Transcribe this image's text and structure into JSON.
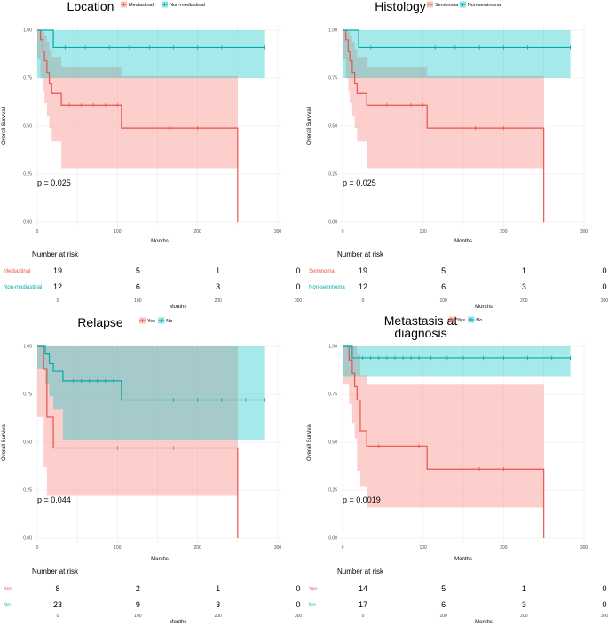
{
  "colors": {
    "red": "#F8766D",
    "teal": "#00BFC4",
    "red_line": "#E8534A",
    "teal_line": "#00A9AE"
  },
  "axis_labels": {
    "xlabel": "Months",
    "ylabel": "Overall Survival"
  },
  "risk_table_title": "Number at risk",
  "chart_data": [
    {
      "type": "line",
      "title_lines": [
        "Location"
      ],
      "legend": [
        "Mediastinal",
        "Non-mediastinal"
      ],
      "p_value": "p = 0.025",
      "xlim": [
        0,
        300
      ],
      "ylim": [
        0,
        1
      ],
      "x_ticks": [
        0,
        100,
        200,
        300
      ],
      "y_ticks": [
        0,
        0.25,
        0.5,
        0.75,
        1
      ],
      "y_tick_labels": [
        "0.00",
        "0.25",
        "0.50",
        "0.75",
        "1.00"
      ],
      "series": [
        {
          "name": "Mediastinal",
          "x": [
            0,
            4,
            7,
            9,
            12,
            15,
            18,
            30,
            105,
            250,
            250
          ],
          "y": [
            1,
            0.95,
            0.89,
            0.84,
            0.78,
            0.72,
            0.67,
            0.61,
            0.49,
            0.49,
            0.0
          ],
          "upper": [
            1,
            1,
            0.99,
            0.97,
            0.94,
            0.9,
            0.86,
            0.81,
            0.76,
            0.76,
            0.76
          ],
          "lower": [
            1,
            0.85,
            0.75,
            0.68,
            0.62,
            0.55,
            0.49,
            0.42,
            0.28,
            0.28,
            0.28
          ],
          "censor_x": [
            40,
            55,
            70,
            85,
            100,
            165,
            200
          ]
        },
        {
          "name": "Non-mediastinal",
          "x": [
            0,
            20,
            283
          ],
          "y": [
            1,
            0.91,
            0.91
          ],
          "upper": [
            1,
            1,
            1
          ],
          "lower": [
            1,
            0.75,
            0.75
          ],
          "censor_x": [
            35,
            60,
            90,
            115,
            140,
            170,
            200,
            230,
            283
          ]
        }
      ],
      "risk_groups": [
        "Mediastinal",
        "Non-mediastinal"
      ],
      "risk_values": [
        [
          19,
          5,
          1,
          0
        ],
        [
          12,
          6,
          3,
          0
        ]
      ]
    },
    {
      "type": "line",
      "title_lines": [
        "Histology"
      ],
      "legend": [
        "Seminoma",
        "Non-seminoma"
      ],
      "p_value": "p = 0.025",
      "xlim": [
        0,
        300
      ],
      "ylim": [
        0,
        1
      ],
      "x_ticks": [
        0,
        100,
        200,
        300
      ],
      "y_ticks": [
        0,
        0.25,
        0.5,
        0.75,
        1
      ],
      "y_tick_labels": [
        "0.00",
        "0.25",
        "0.50",
        "0.75",
        "1.00"
      ],
      "series": [
        {
          "name": "Seminoma",
          "x": [
            0,
            4,
            7,
            9,
            12,
            15,
            18,
            30,
            105,
            250,
            250
          ],
          "y": [
            1,
            0.95,
            0.89,
            0.84,
            0.78,
            0.72,
            0.67,
            0.61,
            0.49,
            0.49,
            0.0
          ],
          "upper": [
            1,
            1,
            0.99,
            0.97,
            0.94,
            0.9,
            0.86,
            0.81,
            0.76,
            0.76,
            0.76
          ],
          "lower": [
            1,
            0.85,
            0.75,
            0.68,
            0.62,
            0.55,
            0.49,
            0.42,
            0.28,
            0.28,
            0.28
          ],
          "censor_x": [
            40,
            55,
            70,
            85,
            100,
            165,
            200
          ]
        },
        {
          "name": "Non-seminoma",
          "x": [
            0,
            20,
            283
          ],
          "y": [
            1,
            0.91,
            0.91
          ],
          "upper": [
            1,
            1,
            1
          ],
          "lower": [
            1,
            0.75,
            0.75
          ],
          "censor_x": [
            35,
            60,
            90,
            115,
            140,
            170,
            200,
            230,
            283
          ]
        }
      ],
      "risk_groups": [
        "Seminoma",
        "Non-seminoma"
      ],
      "risk_values": [
        [
          19,
          5,
          1,
          0
        ],
        [
          12,
          6,
          3,
          0
        ]
      ]
    },
    {
      "type": "line",
      "title_lines": [
        "Relapse"
      ],
      "legend": [
        "Yes",
        "No"
      ],
      "p_value": "p = 0.044",
      "xlim": [
        0,
        300
      ],
      "ylim": [
        0,
        1
      ],
      "x_ticks": [
        0,
        100,
        200,
        300
      ],
      "y_ticks": [
        0,
        0.25,
        0.5,
        0.75,
        1
      ],
      "y_tick_labels": [
        "0.00",
        "0.25",
        "0.50",
        "0.75",
        "1.00"
      ],
      "series": [
        {
          "name": "Yes",
          "x": [
            0,
            8,
            12,
            20,
            250,
            250
          ],
          "y": [
            1,
            0.88,
            0.63,
            0.47,
            0.47,
            0.0
          ],
          "upper": [
            1,
            1,
            1,
            1,
            1,
            1
          ],
          "lower": [
            1,
            0.63,
            0.37,
            0.22,
            0.22,
            0.22
          ],
          "censor_x": [
            100,
            170
          ]
        },
        {
          "name": "No",
          "x": [
            0,
            10,
            15,
            20,
            32,
            105,
            283
          ],
          "y": [
            1,
            0.96,
            0.91,
            0.87,
            0.82,
            0.72,
            0.72
          ],
          "upper": [
            1,
            1,
            1,
            1,
            1,
            1,
            1
          ],
          "lower": [
            1,
            0.88,
            0.8,
            0.74,
            0.67,
            0.51,
            0.51
          ],
          "censor_x": [
            45,
            55,
            65,
            75,
            85,
            95,
            170,
            200,
            230,
            260,
            283
          ]
        }
      ],
      "risk_groups": [
        "Yes",
        "No"
      ],
      "risk_values": [
        [
          8,
          2,
          1,
          0
        ],
        [
          23,
          9,
          3,
          0
        ]
      ]
    },
    {
      "type": "line",
      "title_lines": [
        "Metastasis at",
        "diagnosis"
      ],
      "legend": [
        "Yes",
        "No"
      ],
      "p_value": "p = 0.0019",
      "xlim": [
        0,
        300
      ],
      "ylim": [
        0,
        1
      ],
      "x_ticks": [
        0,
        100,
        200,
        300
      ],
      "y_ticks": [
        0,
        0.25,
        0.5,
        0.75,
        1
      ],
      "y_tick_labels": [
        "0.00",
        "0.25",
        "0.50",
        "0.75",
        "1.00"
      ],
      "series": [
        {
          "name": "Yes",
          "x": [
            0,
            8,
            12,
            15,
            18,
            22,
            30,
            105,
            250,
            250
          ],
          "y": [
            1,
            0.93,
            0.86,
            0.79,
            0.72,
            0.56,
            0.48,
            0.36,
            0.36,
            0.0
          ],
          "upper": [
            1,
            1,
            1,
            1,
            0.96,
            0.85,
            0.8,
            0.8,
            0.8,
            0.8
          ],
          "lower": [
            1,
            0.8,
            0.7,
            0.6,
            0.52,
            0.35,
            0.27,
            0.16,
            0.16,
            0.16
          ],
          "censor_x": [
            45,
            60,
            80,
            95,
            170,
            200
          ]
        },
        {
          "name": "No",
          "x": [
            0,
            12,
            283
          ],
          "y": [
            1,
            0.94,
            0.94
          ],
          "upper": [
            1,
            1,
            1
          ],
          "lower": [
            1,
            0.84,
            0.84
          ],
          "censor_x": [
            25,
            35,
            45,
            55,
            65,
            75,
            85,
            95,
            110,
            130,
            150,
            175,
            200,
            230,
            260,
            283
          ]
        }
      ],
      "risk_groups": [
        "Yes",
        "No"
      ],
      "risk_values": [
        [
          14,
          5,
          1,
          0
        ],
        [
          17,
          6,
          3,
          0
        ]
      ]
    }
  ]
}
